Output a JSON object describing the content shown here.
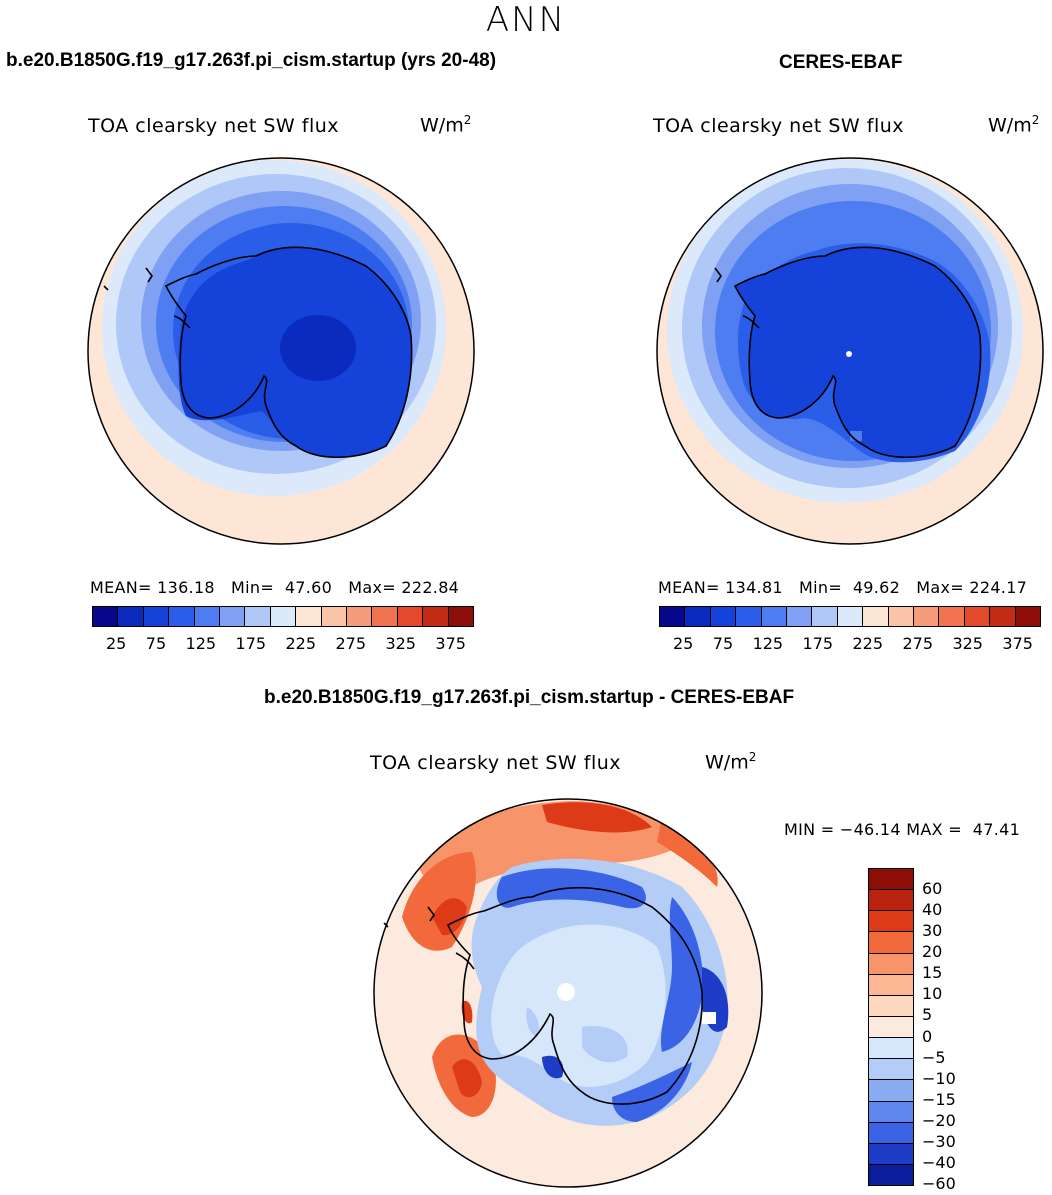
{
  "season": "ANN",
  "panels": [
    {
      "case_title": "b.e20.B1850G.f19_g17.263f.pi_cism.startup (yrs 20-48)",
      "var_title": "TOA clearsky net SW flux",
      "units": "W/m",
      "units_exp": "2",
      "stats": "MEAN= 136.18   Min=  47.60   Max= 222.84",
      "colorbar_ticks": [
        "25",
        "75",
        "125",
        "175",
        "225",
        "275",
        "325",
        "375"
      ]
    },
    {
      "case_title": "CERES-EBAF",
      "var_title": "TOA clearsky net SW flux",
      "units": "W/m",
      "units_exp": "2",
      "stats": "MEAN= 134.81   Min=  49.62   Max= 224.17",
      "colorbar_ticks": [
        "25",
        "75",
        "125",
        "175",
        "225",
        "275",
        "325",
        "375"
      ]
    }
  ],
  "diff": {
    "case_title": "b.e20.B1850G.f19_g17.263f.pi_cism.startup - CERES-EBAF",
    "var_title": "TOA clearsky net SW flux",
    "units": "W/m",
    "units_exp": "2",
    "stats": "MIN = −46.14 MAX =  47.41",
    "colorbar_labels": [
      "60",
      "40",
      "30",
      "20",
      "15",
      "10",
      "5",
      "0",
      "−5",
      "−10",
      "−15",
      "−20",
      "−30",
      "−40",
      "−60"
    ]
  },
  "colors": {
    "abs_scale": [
      "#08088c",
      "#0b2bbf",
      "#1542d8",
      "#2a5ee8",
      "#4d7df0",
      "#7fa0f3",
      "#b0c8f7",
      "#dbe9fb",
      "#fde6d6",
      "#fbc3a7",
      "#f79c7a",
      "#f1734f",
      "#e34a2b",
      "#c22b14",
      "#8c0e06"
    ],
    "diff_scale": [
      "#8c0e06",
      "#b8220f",
      "#dd3a18",
      "#f26a3c",
      "#f8946a",
      "#fbb794",
      "#fcd8bf",
      "#fdeadf",
      "#d7e7fb",
      "#b3cdf7",
      "#88abf2",
      "#5f86ed",
      "#3a63e6",
      "#1d3dc9",
      "#0b1d9c"
    ]
  }
}
